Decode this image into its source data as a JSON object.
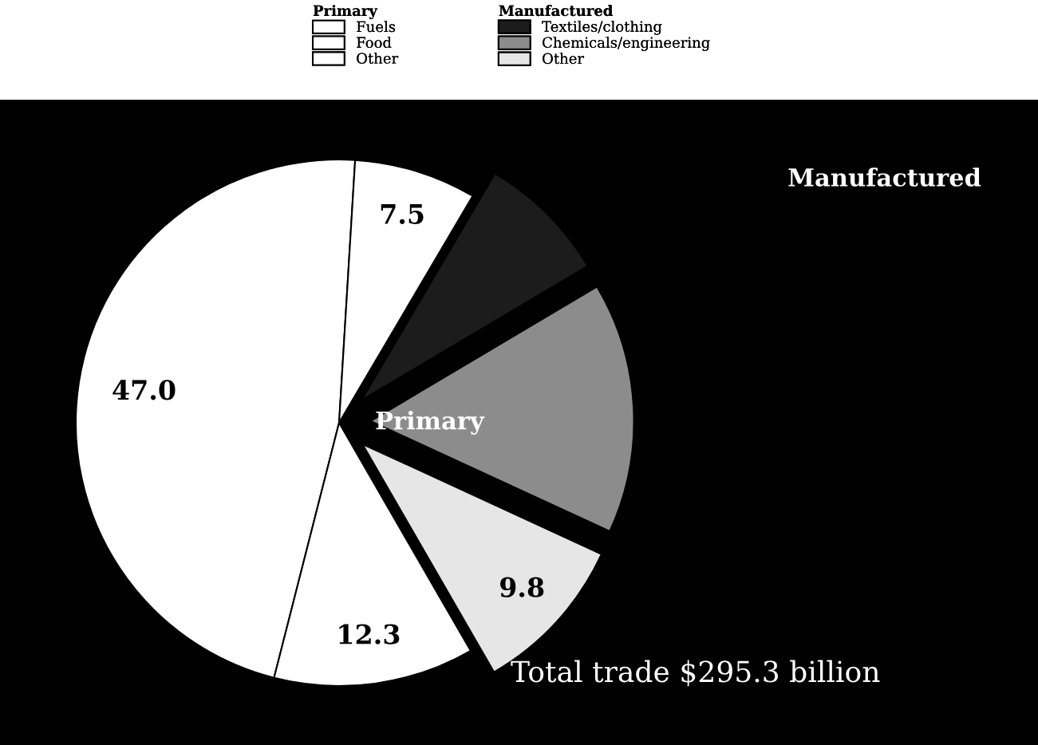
{
  "chart_data": {
    "type": "pie",
    "categories": [
      "Fuels",
      "Food",
      "Other",
      "Chemicals/engineering",
      "Textiles/clothing",
      "Other"
    ],
    "values": [
      47.0,
      12.3,
      9.8,
      15.4,
      8.0,
      7.5
    ],
    "colors": [
      "#ffffff",
      "#ffffff",
      "#e6e6e6",
      "#8c8c8c",
      "#1c1c1c",
      "#ffffff"
    ],
    "value_labels": [
      "47.0",
      "12.3",
      "9.8",
      null,
      null,
      "7.5"
    ],
    "legend": "top",
    "annotations": [
      "Primary",
      "Manufactured",
      "Total trade $295.3 billion"
    ]
  }
}
